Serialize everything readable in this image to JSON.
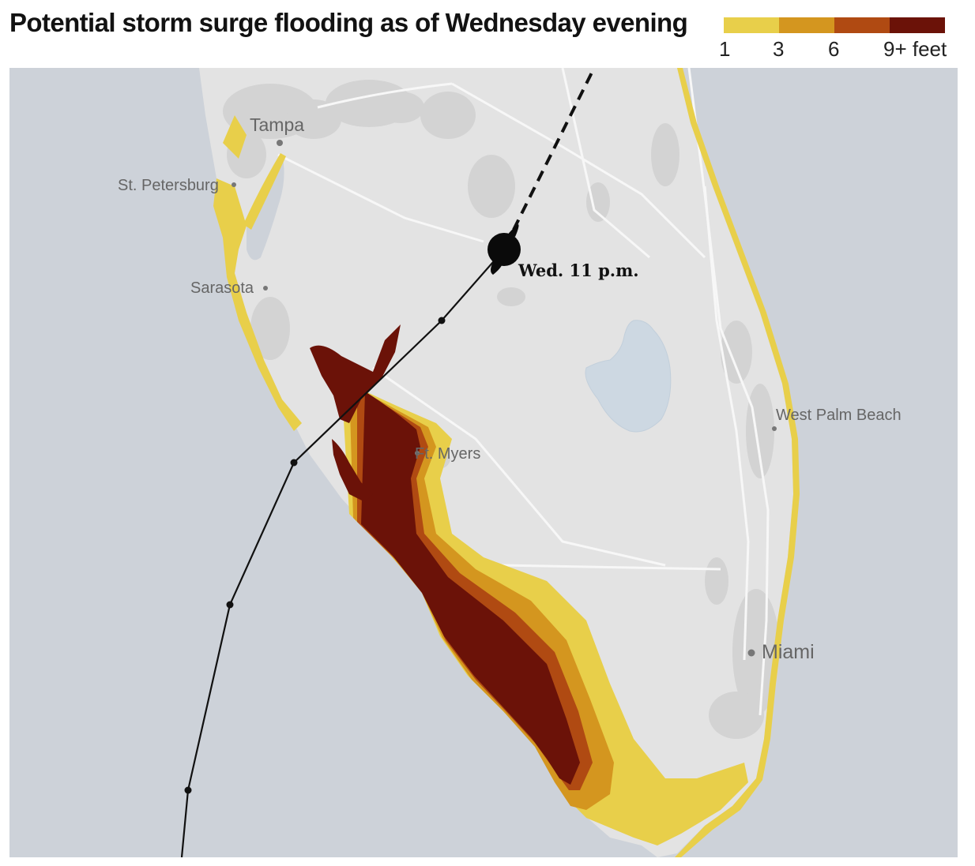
{
  "title": "Potential storm surge flooding as of Wednesday evening",
  "legend": {
    "stops": [
      {
        "label": "1",
        "color": "#e8cf4a"
      },
      {
        "label": "3",
        "color": "#d4961f"
      },
      {
        "label": "6",
        "color": "#b04a12"
      },
      {
        "label": "9+ feet",
        "color": "#6b1208"
      }
    ]
  },
  "map": {
    "colors": {
      "water": "#cdd2d9",
      "land": "#e3e3e3",
      "urban": "#d2d2d2",
      "roads": "#f6f6f6",
      "lake": "#cdd8e2"
    },
    "cities": [
      {
        "id": "tampa",
        "name": "Tampa"
      },
      {
        "id": "st-petersburg",
        "name": "St. Petersburg"
      },
      {
        "id": "sarasota",
        "name": "Sarasota"
      },
      {
        "id": "ft-myers",
        "name": "Ft. Myers"
      },
      {
        "id": "west-palm-beach",
        "name": "West Palm Beach"
      },
      {
        "id": "miami",
        "name": "Miami"
      }
    ],
    "storm": {
      "current_label": "Wed. 11 p.m.",
      "icon": "hurricane-icon"
    }
  }
}
